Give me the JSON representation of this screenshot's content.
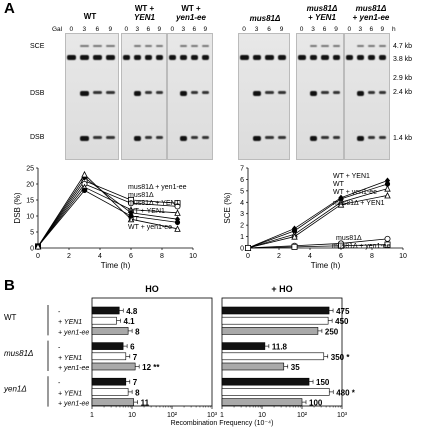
{
  "panel_a": {
    "letter": "A",
    "gal_label": "Gal",
    "hour_unit": "h",
    "lanes": [
      "0",
      "3",
      "6",
      "9"
    ],
    "strains": [
      {
        "line1": "WT",
        "line2": ""
      },
      {
        "line1": "WT +",
        "line2": "YEN1"
      },
      {
        "line1": "WT +",
        "line2": "yen1-ee"
      },
      {
        "line1": "mus81Δ",
        "line2": ""
      },
      {
        "line1": "mus81Δ",
        "line2": "+ YEN1"
      },
      {
        "line1": "mus81Δ",
        "line2": "+ yen1-ee"
      }
    ],
    "row_labels": {
      "sce": "SCE",
      "dsb1": "DSB",
      "dsb2": "DSB"
    },
    "sizes": [
      "4.7 kb",
      "3.8 kb",
      "2.9 kb",
      "2.4 kb",
      "1.4 kb"
    ]
  },
  "chart_data": [
    {
      "type": "line",
      "xlabel": "Time (h)",
      "ylabel": "DSB (%)",
      "xlim": [
        0,
        10
      ],
      "ylim": [
        0,
        25
      ],
      "xticks": [
        0,
        2,
        4,
        6,
        8,
        10
      ],
      "yticks": [
        0,
        5,
        10,
        15,
        20,
        25
      ],
      "x": [
        0,
        3,
        6,
        9
      ],
      "series": [
        {
          "name": "mus81Δ + yen1-ee",
          "values": [
            0.5,
            21,
            15,
            14
          ],
          "marker": "square-open"
        },
        {
          "name": "mus81Δ",
          "values": [
            0.5,
            20,
            14,
            13
          ],
          "marker": "circle-open"
        },
        {
          "name": "mus81Δ + YEN1",
          "values": [
            0.5,
            19,
            12,
            11
          ],
          "marker": "triangle-open"
        },
        {
          "name": "WT + YEN1",
          "values": [
            0.5,
            22,
            11,
            9
          ],
          "marker": "diamond-filled"
        },
        {
          "name": "WT",
          "values": [
            0.5,
            18,
            10,
            8
          ],
          "marker": "circle-filled"
        },
        {
          "name": "WT + yen1-ee",
          "values": [
            0.5,
            23,
            9,
            6
          ],
          "marker": "triangle-open"
        }
      ],
      "label_order": [
        "mus81Δ + yen1-ee",
        "mus81Δ",
        "mus81Δ + YEN1",
        "WT + YEN1",
        "WT",
        "WT + yen1-ee"
      ]
    },
    {
      "type": "line",
      "xlabel": "Time (h)",
      "ylabel": "SCE (%)",
      "xlim": [
        0,
        10
      ],
      "ylim": [
        0,
        7
      ],
      "xticks": [
        0,
        2,
        4,
        6,
        8,
        10
      ],
      "yticks": [
        0,
        1,
        2,
        3,
        4,
        5,
        6,
        7
      ],
      "x": [
        0,
        3,
        6,
        9
      ],
      "series": [
        {
          "name": "WT + YEN1",
          "values": [
            0,
            1.7,
            4.4,
            5.9
          ],
          "marker": "diamond-filled"
        },
        {
          "name": "WT",
          "values": [
            0,
            1.5,
            4.3,
            5.6
          ],
          "marker": "circle-filled"
        },
        {
          "name": "WT + yen1-ee",
          "values": [
            0,
            1.2,
            4.0,
            5.2
          ],
          "marker": "triangle-open"
        },
        {
          "name": "mus81Δ + YEN1",
          "values": [
            0,
            1.0,
            3.8,
            4.6
          ],
          "marker": "triangle-open"
        },
        {
          "name": "mus81Δ",
          "values": [
            0,
            0.2,
            0.4,
            0.8
          ],
          "marker": "circle-open"
        },
        {
          "name": "mus81Δ + yen1-ee",
          "values": [
            0,
            0.1,
            0.2,
            0.3
          ],
          "marker": "square-open"
        }
      ],
      "label_order": [
        "WT + YEN1",
        "WT",
        "WT + yen1-ee",
        "mus81Δ + YEN1",
        "mus81Δ",
        "mus81Δ + yen1-ee"
      ]
    },
    {
      "type": "bar",
      "orientation": "horizontal",
      "scale": "log",
      "title": "HO",
      "xlabel": "Recombination Frequency (10⁻⁴)",
      "xlim": [
        1,
        1000
      ],
      "xticks": [
        "1",
        "10",
        "10²",
        "10³"
      ],
      "categories": [
        "WT",
        "WT + YEN1",
        "WT + yen1-ee",
        "mus81Δ",
        "mus81Δ + YEN1",
        "mus81Δ + yen1-ee",
        "yen1Δ",
        "yen1Δ + YEN1",
        "yen1Δ + yen1-ee"
      ],
      "values": [
        4.8,
        4.1,
        8,
        6,
        7,
        12,
        7,
        8,
        11
      ],
      "labels": [
        "4.8",
        "4.1",
        "8",
        "6",
        "7",
        "12",
        "7",
        "8",
        "11"
      ],
      "annotations": [
        "",
        "",
        "",
        "",
        "",
        "**",
        "",
        "",
        ""
      ]
    },
    {
      "type": "bar",
      "orientation": "horizontal",
      "scale": "log",
      "title": "+ HO",
      "xlim": [
        1,
        1000
      ],
      "xticks": [
        "1",
        "10",
        "10²",
        "10³"
      ],
      "categories": [
        "WT",
        "WT + YEN1",
        "WT + yen1-ee",
        "mus81Δ",
        "mus81Δ + YEN1",
        "mus81Δ + yen1-ee",
        "yen1Δ",
        "yen1Δ + YEN1",
        "yen1Δ + yen1-ee"
      ],
      "values": [
        475,
        450,
        250,
        11.8,
        350,
        35,
        150,
        480,
        100
      ],
      "labels": [
        "475",
        "450",
        "250",
        "11.8",
        "350",
        "35",
        "150",
        "480",
        "100"
      ],
      "annotations": [
        "",
        "",
        "",
        "",
        "*",
        "",
        "",
        "*",
        ""
      ]
    }
  ],
  "panel_b": {
    "letter": "B",
    "group_labels": [
      "WT",
      "mus81Δ",
      "yen1Δ"
    ],
    "row_labels": [
      "-",
      "+ YEN1",
      "+ yen1-ee",
      "-",
      "+ YEN1",
      "+ yen1-ee",
      "-",
      "+ YEN1",
      "+ yen1-ee"
    ],
    "colors": {
      "none": "#111111",
      "yen1": "#ffffff",
      "yen1ee": "#a9a9a9"
    }
  }
}
